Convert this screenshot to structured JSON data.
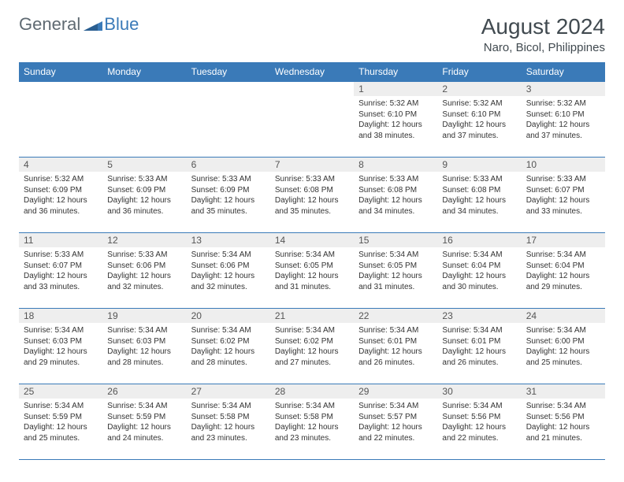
{
  "logo": {
    "general": "General",
    "blue": "Blue"
  },
  "title": "August 2024",
  "location": "Naro, Bicol, Philippines",
  "colors": {
    "header_bg": "#3a7ab8",
    "header_text": "#ffffff",
    "daynum_bg": "#eeeeee",
    "text": "#333333",
    "title_color": "#414a50"
  },
  "weekdays": [
    "Sunday",
    "Monday",
    "Tuesday",
    "Wednesday",
    "Thursday",
    "Friday",
    "Saturday"
  ],
  "weeks": [
    [
      null,
      null,
      null,
      null,
      {
        "d": "1",
        "sr": "5:32 AM",
        "ss": "6:10 PM",
        "dl": "12 hours and 38 minutes."
      },
      {
        "d": "2",
        "sr": "5:32 AM",
        "ss": "6:10 PM",
        "dl": "12 hours and 37 minutes."
      },
      {
        "d": "3",
        "sr": "5:32 AM",
        "ss": "6:10 PM",
        "dl": "12 hours and 37 minutes."
      }
    ],
    [
      {
        "d": "4",
        "sr": "5:32 AM",
        "ss": "6:09 PM",
        "dl": "12 hours and 36 minutes."
      },
      {
        "d": "5",
        "sr": "5:33 AM",
        "ss": "6:09 PM",
        "dl": "12 hours and 36 minutes."
      },
      {
        "d": "6",
        "sr": "5:33 AM",
        "ss": "6:09 PM",
        "dl": "12 hours and 35 minutes."
      },
      {
        "d": "7",
        "sr": "5:33 AM",
        "ss": "6:08 PM",
        "dl": "12 hours and 35 minutes."
      },
      {
        "d": "8",
        "sr": "5:33 AM",
        "ss": "6:08 PM",
        "dl": "12 hours and 34 minutes."
      },
      {
        "d": "9",
        "sr": "5:33 AM",
        "ss": "6:08 PM",
        "dl": "12 hours and 34 minutes."
      },
      {
        "d": "10",
        "sr": "5:33 AM",
        "ss": "6:07 PM",
        "dl": "12 hours and 33 minutes."
      }
    ],
    [
      {
        "d": "11",
        "sr": "5:33 AM",
        "ss": "6:07 PM",
        "dl": "12 hours and 33 minutes."
      },
      {
        "d": "12",
        "sr": "5:33 AM",
        "ss": "6:06 PM",
        "dl": "12 hours and 32 minutes."
      },
      {
        "d": "13",
        "sr": "5:34 AM",
        "ss": "6:06 PM",
        "dl": "12 hours and 32 minutes."
      },
      {
        "d": "14",
        "sr": "5:34 AM",
        "ss": "6:05 PM",
        "dl": "12 hours and 31 minutes."
      },
      {
        "d": "15",
        "sr": "5:34 AM",
        "ss": "6:05 PM",
        "dl": "12 hours and 31 minutes."
      },
      {
        "d": "16",
        "sr": "5:34 AM",
        "ss": "6:04 PM",
        "dl": "12 hours and 30 minutes."
      },
      {
        "d": "17",
        "sr": "5:34 AM",
        "ss": "6:04 PM",
        "dl": "12 hours and 29 minutes."
      }
    ],
    [
      {
        "d": "18",
        "sr": "5:34 AM",
        "ss": "6:03 PM",
        "dl": "12 hours and 29 minutes."
      },
      {
        "d": "19",
        "sr": "5:34 AM",
        "ss": "6:03 PM",
        "dl": "12 hours and 28 minutes."
      },
      {
        "d": "20",
        "sr": "5:34 AM",
        "ss": "6:02 PM",
        "dl": "12 hours and 28 minutes."
      },
      {
        "d": "21",
        "sr": "5:34 AM",
        "ss": "6:02 PM",
        "dl": "12 hours and 27 minutes."
      },
      {
        "d": "22",
        "sr": "5:34 AM",
        "ss": "6:01 PM",
        "dl": "12 hours and 26 minutes."
      },
      {
        "d": "23",
        "sr": "5:34 AM",
        "ss": "6:01 PM",
        "dl": "12 hours and 26 minutes."
      },
      {
        "d": "24",
        "sr": "5:34 AM",
        "ss": "6:00 PM",
        "dl": "12 hours and 25 minutes."
      }
    ],
    [
      {
        "d": "25",
        "sr": "5:34 AM",
        "ss": "5:59 PM",
        "dl": "12 hours and 25 minutes."
      },
      {
        "d": "26",
        "sr": "5:34 AM",
        "ss": "5:59 PM",
        "dl": "12 hours and 24 minutes."
      },
      {
        "d": "27",
        "sr": "5:34 AM",
        "ss": "5:58 PM",
        "dl": "12 hours and 23 minutes."
      },
      {
        "d": "28",
        "sr": "5:34 AM",
        "ss": "5:58 PM",
        "dl": "12 hours and 23 minutes."
      },
      {
        "d": "29",
        "sr": "5:34 AM",
        "ss": "5:57 PM",
        "dl": "12 hours and 22 minutes."
      },
      {
        "d": "30",
        "sr": "5:34 AM",
        "ss": "5:56 PM",
        "dl": "12 hours and 22 minutes."
      },
      {
        "d": "31",
        "sr": "5:34 AM",
        "ss": "5:56 PM",
        "dl": "12 hours and 21 minutes."
      }
    ]
  ],
  "labels": {
    "sunrise": "Sunrise:",
    "sunset": "Sunset:",
    "daylight": "Daylight:"
  }
}
